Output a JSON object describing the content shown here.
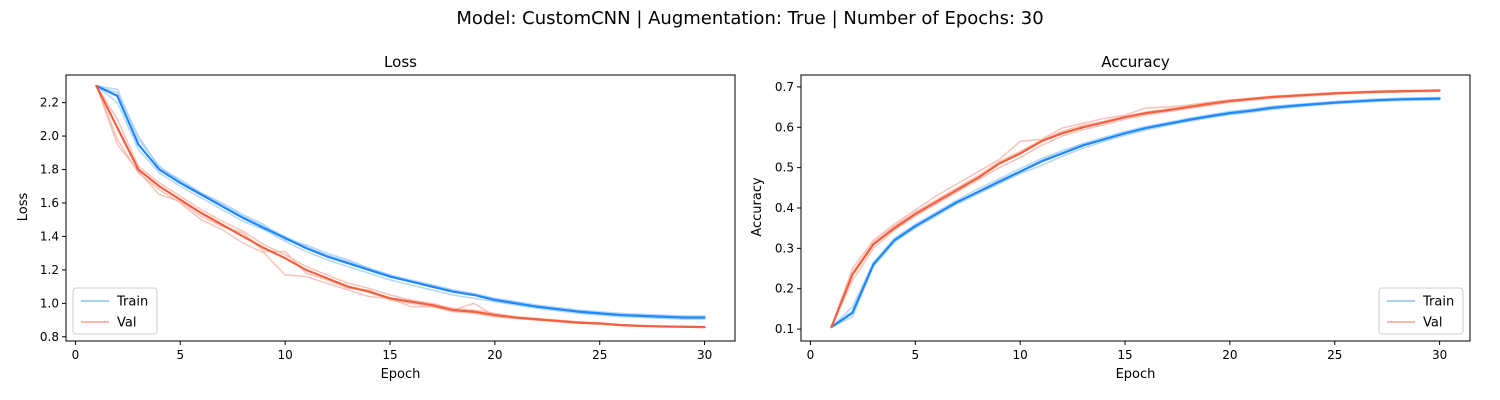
{
  "suptitle": "Model: CustomCNN | Augmentation: True | Number of Epochs: 30",
  "colors": {
    "train": "#1e88ff",
    "train_light": "#9fc9f7",
    "val": "#f4603f",
    "val_light": "#f7b0a3",
    "frame": "#000000"
  },
  "chart_data": [
    {
      "type": "line",
      "title": "Loss",
      "xlabel": "Epoch",
      "ylabel": "Loss",
      "xlim": [
        -0.45,
        31.45
      ],
      "ylim": [
        0.775,
        2.365
      ],
      "xticks": [
        0,
        5,
        10,
        15,
        20,
        25,
        30
      ],
      "xtick_labels": [
        "0",
        "5",
        "10",
        "15",
        "20",
        "25",
        "30"
      ],
      "yticks": [
        0.8,
        1.0,
        1.2,
        1.4,
        1.6,
        1.8,
        2.0,
        2.2
      ],
      "ytick_labels": [
        "0.8",
        "1.0",
        "1.2",
        "1.4",
        "1.6",
        "1.8",
        "2.0",
        "2.2"
      ],
      "grid": false,
      "legend": {
        "placement": "lower-left",
        "entries": [
          "Train",
          "Val"
        ]
      },
      "x": [
        1,
        2,
        3,
        4,
        5,
        6,
        7,
        8,
        9,
        10,
        11,
        12,
        13,
        14,
        15,
        16,
        17,
        18,
        19,
        20,
        21,
        22,
        23,
        24,
        25,
        26,
        27,
        28,
        29,
        30
      ],
      "series": [
        {
          "name": "Train",
          "role": "mean",
          "color_key": "train",
          "values": [
            2.3,
            2.24,
            1.95,
            1.8,
            1.72,
            1.65,
            1.58,
            1.51,
            1.45,
            1.39,
            1.33,
            1.28,
            1.24,
            1.2,
            1.16,
            1.13,
            1.1,
            1.07,
            1.05,
            1.02,
            1.0,
            0.98,
            0.965,
            0.95,
            0.94,
            0.93,
            0.925,
            0.92,
            0.915,
            0.915
          ]
        },
        {
          "name": "Val",
          "role": "mean",
          "color_key": "val",
          "values": [
            2.3,
            2.05,
            1.8,
            1.7,
            1.62,
            1.54,
            1.47,
            1.4,
            1.33,
            1.27,
            1.2,
            1.15,
            1.1,
            1.07,
            1.03,
            1.01,
            0.99,
            0.96,
            0.95,
            0.93,
            0.915,
            0.905,
            0.895,
            0.885,
            0.88,
            0.87,
            0.865,
            0.862,
            0.86,
            0.858
          ]
        },
        {
          "role": "run",
          "color_key": "train_light",
          "values": [
            2.3,
            2.28,
            1.98,
            1.82,
            1.73,
            1.66,
            1.59,
            1.52,
            1.46,
            1.4,
            1.34,
            1.29,
            1.25,
            1.21,
            1.17,
            1.14,
            1.11,
            1.08,
            1.06,
            1.03,
            1.01,
            0.99,
            0.975,
            0.96,
            0.95,
            0.94,
            0.935,
            0.93,
            0.925,
            0.925
          ]
        },
        {
          "role": "run",
          "color_key": "train_light",
          "values": [
            2.3,
            2.2,
            1.92,
            1.78,
            1.7,
            1.63,
            1.56,
            1.49,
            1.44,
            1.37,
            1.31,
            1.26,
            1.22,
            1.18,
            1.14,
            1.11,
            1.08,
            1.05,
            1.03,
            1.01,
            0.99,
            0.97,
            0.955,
            0.94,
            0.93,
            0.92,
            0.915,
            0.91,
            0.905,
            0.905
          ]
        },
        {
          "role": "run",
          "color_key": "train_light",
          "values": [
            2.3,
            2.26,
            2.0,
            1.81,
            1.74,
            1.66,
            1.6,
            1.53,
            1.47,
            1.38,
            1.35,
            1.3,
            1.26,
            1.21,
            1.17,
            1.13,
            1.11,
            1.08,
            1.05,
            1.03,
            1.01,
            0.985,
            0.97,
            0.955,
            0.945,
            0.935,
            0.93,
            0.925,
            0.92,
            0.92
          ]
        },
        {
          "role": "run",
          "color_key": "val_light",
          "values": [
            2.3,
            1.98,
            1.78,
            1.68,
            1.6,
            1.5,
            1.44,
            1.36,
            1.3,
            1.17,
            1.16,
            1.12,
            1.08,
            1.04,
            1.03,
            0.98,
            0.98,
            0.95,
            0.94,
            0.92,
            0.91,
            0.9,
            0.89,
            0.88,
            0.875,
            0.868,
            0.862,
            0.86,
            0.858,
            0.856
          ]
        },
        {
          "role": "run",
          "color_key": "val_light",
          "values": [
            2.3,
            2.1,
            1.82,
            1.72,
            1.64,
            1.56,
            1.49,
            1.43,
            1.35,
            1.29,
            1.22,
            1.17,
            1.12,
            1.09,
            1.05,
            1.02,
            1.0,
            0.97,
            0.96,
            0.94,
            0.92,
            0.91,
            0.9,
            0.89,
            0.884,
            0.874,
            0.868,
            0.864,
            0.862,
            0.86
          ]
        },
        {
          "role": "run",
          "color_key": "val_light",
          "values": [
            2.3,
            1.95,
            1.79,
            1.65,
            1.61,
            1.52,
            1.46,
            1.42,
            1.31,
            1.31,
            1.18,
            1.14,
            1.09,
            1.08,
            1.02,
            1.0,
            0.98,
            0.96,
            1.0,
            0.925,
            0.91,
            0.9,
            0.893,
            0.882,
            0.878,
            0.87,
            0.866,
            0.862,
            0.859,
            0.857
          ]
        }
      ]
    },
    {
      "type": "line",
      "title": "Accuracy",
      "xlabel": "Epoch",
      "ylabel": "Accuracy",
      "xlim": [
        -0.45,
        31.45
      ],
      "ylim": [
        0.0705,
        0.7295
      ],
      "xticks": [
        0,
        5,
        10,
        15,
        20,
        25,
        30
      ],
      "xtick_labels": [
        "0",
        "5",
        "10",
        "15",
        "20",
        "25",
        "30"
      ],
      "yticks": [
        0.1,
        0.2,
        0.3,
        0.4,
        0.5,
        0.6,
        0.7
      ],
      "ytick_labels": [
        "0.1",
        "0.2",
        "0.3",
        "0.4",
        "0.5",
        "0.6",
        "0.7"
      ],
      "grid": false,
      "legend": {
        "placement": "lower-right",
        "entries": [
          "Train",
          "Val"
        ]
      },
      "x": [
        1,
        2,
        3,
        4,
        5,
        6,
        7,
        8,
        9,
        10,
        11,
        12,
        13,
        14,
        15,
        16,
        17,
        18,
        19,
        20,
        21,
        22,
        23,
        24,
        25,
        26,
        27,
        28,
        29,
        30
      ],
      "series": [
        {
          "name": "Train",
          "role": "mean",
          "color_key": "train",
          "values": [
            0.105,
            0.14,
            0.26,
            0.32,
            0.355,
            0.385,
            0.415,
            0.44,
            0.465,
            0.49,
            0.515,
            0.535,
            0.555,
            0.57,
            0.585,
            0.598,
            0.608,
            0.618,
            0.627,
            0.635,
            0.641,
            0.648,
            0.653,
            0.657,
            0.661,
            0.664,
            0.667,
            0.669,
            0.67,
            0.671
          ]
        },
        {
          "name": "Val",
          "role": "mean",
          "color_key": "val",
          "values": [
            0.105,
            0.235,
            0.31,
            0.35,
            0.385,
            0.415,
            0.445,
            0.475,
            0.51,
            0.535,
            0.565,
            0.585,
            0.6,
            0.612,
            0.625,
            0.635,
            0.642,
            0.65,
            0.658,
            0.665,
            0.67,
            0.675,
            0.678,
            0.681,
            0.684,
            0.686,
            0.688,
            0.689,
            0.69,
            0.691
          ]
        },
        {
          "role": "run",
          "color_key": "train_light",
          "values": [
            0.105,
            0.13,
            0.255,
            0.315,
            0.35,
            0.38,
            0.41,
            0.435,
            0.46,
            0.485,
            0.505,
            0.528,
            0.548,
            0.565,
            0.58,
            0.593,
            0.604,
            0.614,
            0.623,
            0.631,
            0.637,
            0.644,
            0.649,
            0.654,
            0.658,
            0.661,
            0.664,
            0.666,
            0.667,
            0.668
          ]
        },
        {
          "role": "run",
          "color_key": "train_light",
          "values": [
            0.105,
            0.155,
            0.265,
            0.325,
            0.36,
            0.39,
            0.42,
            0.448,
            0.472,
            0.498,
            0.522,
            0.542,
            0.56,
            0.575,
            0.59,
            0.602,
            0.612,
            0.622,
            0.631,
            0.639,
            0.645,
            0.652,
            0.656,
            0.66,
            0.664,
            0.667,
            0.67,
            0.672,
            0.673,
            0.674
          ]
        },
        {
          "role": "run",
          "color_key": "train_light",
          "values": [
            0.105,
            0.145,
            0.26,
            0.318,
            0.356,
            0.386,
            0.414,
            0.442,
            0.468,
            0.492,
            0.518,
            0.538,
            0.558,
            0.572,
            0.587,
            0.6,
            0.61,
            0.62,
            0.629,
            0.637,
            0.643,
            0.65,
            0.655,
            0.659,
            0.663,
            0.666,
            0.669,
            0.671,
            0.672,
            0.673
          ]
        },
        {
          "role": "run",
          "color_key": "val_light",
          "values": [
            0.105,
            0.25,
            0.32,
            0.36,
            0.395,
            0.43,
            0.46,
            0.49,
            0.52,
            0.565,
            0.57,
            0.598,
            0.61,
            0.622,
            0.63,
            0.648,
            0.65,
            0.655,
            0.662,
            0.668,
            0.672,
            0.677,
            0.68,
            0.683,
            0.686,
            0.688,
            0.69,
            0.691,
            0.692,
            0.693
          ]
        },
        {
          "role": "run",
          "color_key": "val_light",
          "values": [
            0.105,
            0.22,
            0.3,
            0.345,
            0.38,
            0.41,
            0.44,
            0.47,
            0.5,
            0.525,
            0.555,
            0.578,
            0.594,
            0.606,
            0.62,
            0.63,
            0.638,
            0.646,
            0.654,
            0.662,
            0.667,
            0.672,
            0.675,
            0.678,
            0.682,
            0.684,
            0.686,
            0.687,
            0.688,
            0.689
          ]
        },
        {
          "role": "run",
          "color_key": "val_light",
          "values": [
            0.105,
            0.24,
            0.315,
            0.355,
            0.39,
            0.42,
            0.45,
            0.48,
            0.515,
            0.54,
            0.568,
            0.59,
            0.605,
            0.615,
            0.627,
            0.638,
            0.645,
            0.652,
            0.66,
            0.667,
            0.671,
            0.676,
            0.679,
            0.682,
            0.685,
            0.687,
            0.689,
            0.69,
            0.691,
            0.692
          ]
        }
      ]
    }
  ]
}
